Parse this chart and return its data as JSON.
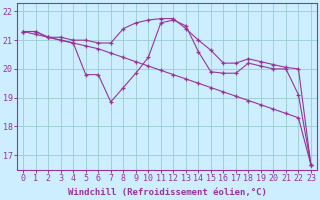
{
  "xlabel": "Windchill (Refroidissement éolien,°C)",
  "x": [
    0,
    1,
    2,
    3,
    4,
    5,
    6,
    7,
    8,
    9,
    10,
    11,
    12,
    13,
    14,
    15,
    16,
    17,
    18,
    19,
    20,
    21,
    22,
    23
  ],
  "line1": [
    21.3,
    21.3,
    21.1,
    21.0,
    20.9,
    19.8,
    19.8,
    18.85,
    19.35,
    19.85,
    20.4,
    21.6,
    21.7,
    21.5,
    20.6,
    19.9,
    19.85,
    19.85,
    20.2,
    20.1,
    20.0,
    20.0,
    19.1,
    16.65
  ],
  "line2": [
    21.3,
    21.2,
    21.1,
    21.0,
    20.9,
    20.8,
    20.7,
    20.55,
    20.4,
    20.25,
    20.1,
    19.95,
    19.8,
    19.65,
    19.5,
    19.35,
    19.2,
    19.05,
    18.9,
    18.75,
    18.6,
    18.45,
    18.3,
    16.65
  ],
  "line3": [
    21.3,
    21.3,
    21.1,
    21.1,
    21.0,
    21.0,
    20.9,
    20.9,
    21.4,
    21.6,
    21.7,
    21.75,
    21.75,
    21.4,
    21.0,
    20.65,
    20.2,
    20.2,
    20.35,
    20.25,
    20.15,
    20.05,
    20.0,
    16.65
  ],
  "line_color": "#993399",
  "bg_color": "#cceeff",
  "grid_color": "#99cccc",
  "axis_color": "#993399",
  "text_color": "#993399",
  "ylim": [
    16.5,
    22.3
  ],
  "yticks": [
    17,
    18,
    19,
    20,
    21,
    22
  ],
  "xlim": [
    -0.5,
    23.5
  ],
  "xticks": [
    0,
    1,
    2,
    3,
    4,
    5,
    6,
    7,
    8,
    9,
    10,
    11,
    12,
    13,
    14,
    15,
    16,
    17,
    18,
    19,
    20,
    21,
    22,
    23
  ],
  "xlabel_fontsize": 6.5,
  "tick_fontsize": 6
}
